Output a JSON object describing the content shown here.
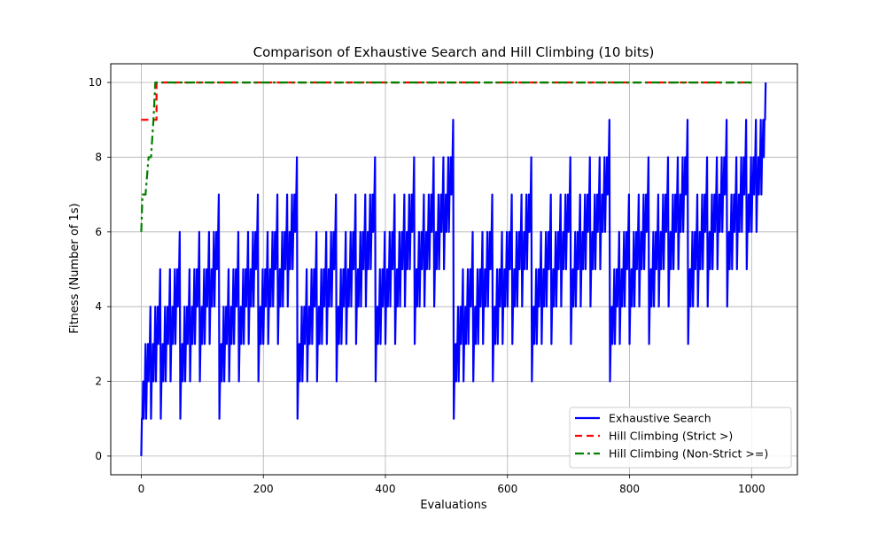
{
  "chart_data": {
    "type": "line",
    "title": "Comparison of Exhaustive Search and Hill Climbing (10 bits)",
    "xlabel": "Evaluations",
    "ylabel": "Fitness (Number of 1s)",
    "xlim": [
      -50,
      1075
    ],
    "ylim": [
      -0.5,
      10.5
    ],
    "xticks": [
      0,
      200,
      400,
      600,
      800,
      1000
    ],
    "yticks": [
      0,
      2,
      4,
      6,
      8,
      10
    ],
    "grid": true,
    "legend_position": "lower-right",
    "series": [
      {
        "name": "Exhaustive Search",
        "color": "#0000ff",
        "style": "solid",
        "description": "fitness = number of 1 bits in the evaluation index (0–1023)",
        "x_start": 0,
        "x_end": 1023
      },
      {
        "name": "Hill Climbing (Strict >)",
        "color": "#ff0000",
        "style": "dashed",
        "x": [
          0,
          25,
          25,
          1000
        ],
        "y": [
          9,
          9,
          10,
          10
        ]
      },
      {
        "name": "Hill Climbing (Non-Strict >=)",
        "color": "#008000",
        "style": "dashdot",
        "x": [
          0,
          2,
          7,
          12,
          16,
          20,
          23,
          1000
        ],
        "y": [
          6,
          7,
          7,
          8,
          8,
          9,
          10,
          10
        ]
      }
    ]
  }
}
